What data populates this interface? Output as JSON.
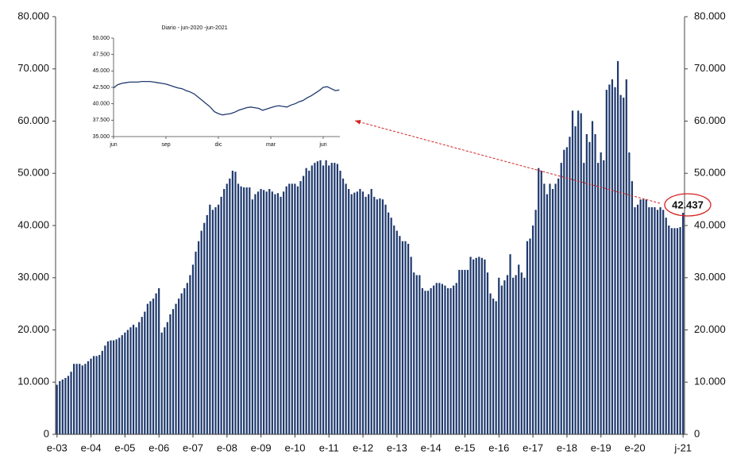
{
  "chart_data": [
    {
      "type": "bar",
      "categories": [
        "e-03",
        null,
        null,
        null,
        null,
        null,
        null,
        null,
        null,
        null,
        null,
        null,
        "e-04",
        null,
        null,
        null,
        null,
        null,
        null,
        null,
        null,
        null,
        null,
        null,
        "e-05",
        null,
        null,
        null,
        null,
        null,
        null,
        null,
        null,
        null,
        null,
        null,
        "e-06",
        null,
        null,
        null,
        null,
        null,
        null,
        null,
        null,
        null,
        null,
        null,
        "e-07",
        null,
        null,
        null,
        null,
        null,
        null,
        null,
        null,
        null,
        null,
        null,
        "e-08",
        null,
        null,
        null,
        null,
        null,
        null,
        null,
        null,
        null,
        null,
        null,
        "e-09",
        null,
        null,
        null,
        null,
        null,
        null,
        null,
        null,
        null,
        null,
        null,
        "e-10",
        null,
        null,
        null,
        null,
        null,
        null,
        null,
        null,
        null,
        null,
        null,
        "e-11",
        null,
        null,
        null,
        null,
        null,
        null,
        null,
        null,
        null,
        null,
        null,
        "e-12",
        null,
        null,
        null,
        null,
        null,
        null,
        null,
        null,
        null,
        null,
        null,
        "e-13",
        null,
        null,
        null,
        null,
        null,
        null,
        null,
        null,
        null,
        null,
        null,
        "e-14",
        null,
        null,
        null,
        null,
        null,
        null,
        null,
        null,
        null,
        null,
        null,
        "e-15",
        null,
        null,
        null,
        null,
        null,
        null,
        null,
        null,
        null,
        null,
        null,
        "e-16",
        null,
        null,
        null,
        null,
        null,
        null,
        null,
        null,
        null,
        null,
        null,
        "e-17",
        null,
        null,
        null,
        null,
        null,
        null,
        null,
        null,
        null,
        null,
        null,
        "e-18",
        null,
        null,
        null,
        null,
        null,
        null,
        null,
        null,
        null,
        null,
        null,
        "e-19",
        null,
        null,
        null,
        null,
        null,
        null,
        null,
        null,
        null,
        null,
        null,
        "e-20",
        null,
        null,
        null,
        null,
        null,
        null,
        null,
        null,
        null,
        null,
        null,
        null,
        null,
        null,
        null,
        null,
        "j-21"
      ],
      "values": [
        9500,
        10200,
        10500,
        10800,
        11200,
        12000,
        13500,
        13500,
        13500,
        13200,
        13500,
        14000,
        14500,
        15000,
        15000,
        15200,
        16000,
        17000,
        17800,
        18000,
        18000,
        18200,
        18500,
        19000,
        19500,
        20000,
        20500,
        21000,
        20500,
        21500,
        22500,
        23500,
        25000,
        25500,
        26000,
        27000,
        28000,
        19500,
        20500,
        21500,
        23000,
        24000,
        25000,
        26000,
        27000,
        28000,
        29000,
        30500,
        32500,
        35000,
        37000,
        39000,
        40500,
        42000,
        44000,
        43000,
        43500,
        44000,
        45500,
        47000,
        48000,
        49000,
        50500,
        50300,
        48000,
        47500,
        47300,
        47300,
        47300,
        45000,
        46000,
        46500,
        47000,
        46800,
        46500,
        47000,
        46500,
        46000,
        46200,
        45500,
        46500,
        47500,
        48000,
        48000,
        48000,
        47500,
        48500,
        49500,
        51000,
        50500,
        51500,
        52000,
        52300,
        52500,
        51500,
        52500,
        51500,
        52000,
        52000,
        51800,
        50500,
        49000,
        48000,
        47000,
        46000,
        46300,
        46500,
        47000,
        46500,
        45500,
        46000,
        47000,
        45500,
        45000,
        45200,
        45000,
        44000,
        42500,
        41500,
        40000,
        39000,
        38000,
        37000,
        37000,
        36500,
        34000,
        31000,
        30500,
        30500,
        28000,
        27500,
        27500,
        28000,
        28500,
        29000,
        29000,
        28800,
        28500,
        28000,
        28000,
        28500,
        29000,
        31500,
        31500,
        31500,
        31500,
        34000,
        33500,
        33800,
        34000,
        33800,
        33500,
        31000,
        27000,
        26000,
        25500,
        30000,
        28500,
        29500,
        30500,
        34500,
        30000,
        30500,
        32500,
        31000,
        30000,
        37000,
        37500,
        40000,
        43000,
        51000,
        50500,
        48000,
        46000,
        48000,
        47000,
        48000,
        49000,
        52000,
        54500,
        55000,
        57000,
        62000,
        59000,
        62000,
        61500,
        52000,
        57500,
        56000,
        60000,
        57500,
        52000,
        54000,
        52500,
        66000,
        67000,
        68000,
        66500,
        71500,
        65000,
        64500,
        68000,
        54000,
        48500,
        43500,
        44000,
        45000,
        45000,
        45000,
        43500,
        43500,
        43500,
        43000,
        43500,
        43000,
        41500,
        40000,
        39500,
        39500,
        39500,
        39700,
        42437
      ],
      "color": "#1f3a6e",
      "ylim": [
        0,
        80000
      ],
      "yticks": [
        0,
        {
          "value": 10000,
          "label": "10.000"
        },
        {
          "value": 20000,
          "label": "20.000"
        },
        {
          "value": 30000,
          "label": "30.000"
        },
        {
          "value": 40000,
          "label": "40.000"
        },
        {
          "value": 50000,
          "label": "50.000"
        },
        {
          "value": 60000,
          "label": "60.000"
        },
        {
          "value": 70000,
          "label": "70.000"
        },
        {
          "value": 80000,
          "label": "80.000"
        }
      ],
      "y2lim": [
        0,
        80000
      ],
      "y2ticks": [
        0,
        {
          "value": 10000,
          "label": "10.000"
        },
        {
          "value": 20000,
          "label": "20.000"
        },
        {
          "value": 30000,
          "label": "30.000"
        },
        {
          "value": 40000,
          "label": "40.000"
        },
        {
          "value": 50000,
          "label": "50.000"
        },
        {
          "value": 60000,
          "label": "60.000"
        },
        {
          "value": 70000,
          "label": "70.000"
        },
        {
          "value": 80000,
          "label": "80.000"
        }
      ],
      "annotation": {
        "value": 42437,
        "label": "42.437",
        "color": "#d42020"
      }
    },
    {
      "type": "line",
      "title": "Diario - jun-2020 -jun-2021",
      "categories": [
        "jun",
        null,
        null,
        null,
        null,
        null,
        null,
        null,
        null,
        null,
        null,
        null,
        null,
        "sep",
        null,
        null,
        null,
        null,
        null,
        null,
        null,
        null,
        null,
        null,
        null,
        null,
        "dic",
        null,
        null,
        null,
        null,
        null,
        null,
        null,
        null,
        null,
        null,
        null,
        null,
        "mar",
        null,
        null,
        null,
        null,
        null,
        null,
        null,
        null,
        null,
        null,
        null,
        null,
        "jun",
        null,
        null,
        null,
        null
      ],
      "values": [
        42400,
        42900,
        43100,
        43200,
        43300,
        43300,
        43300,
        43400,
        43400,
        43400,
        43300,
        43200,
        43100,
        43000,
        42800,
        42600,
        42400,
        42300,
        42000,
        41800,
        41500,
        41000,
        40500,
        40000,
        39500,
        38800,
        38500,
        38300,
        38400,
        38500,
        38700,
        39000,
        39200,
        39400,
        39500,
        39400,
        39300,
        39000,
        39200,
        39400,
        39600,
        39700,
        39600,
        39500,
        39800,
        40000,
        40300,
        40500,
        40900,
        41200,
        41600,
        42000,
        42500,
        42600,
        42300,
        42000,
        42100
      ],
      "color": "#1f3a6e",
      "ylim": [
        35000,
        50000
      ],
      "yticks": [
        {
          "value": 35000,
          "label": "35.000"
        },
        {
          "value": 37500,
          "label": "37.500"
        },
        {
          "value": 40000,
          "label": "40.000"
        },
        {
          "value": 42500,
          "label": "42.500"
        },
        {
          "value": 45000,
          "label": "45.000"
        },
        {
          "value": 47500,
          "label": "47.500"
        },
        {
          "value": 50000,
          "label": "50.000"
        }
      ]
    }
  ]
}
